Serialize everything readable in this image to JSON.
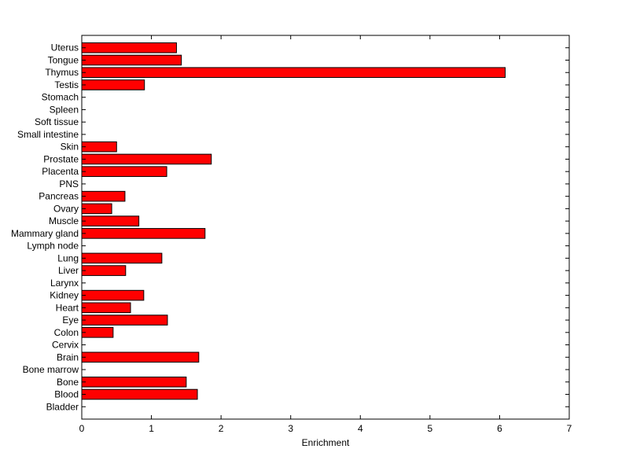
{
  "chart_data": {
    "type": "bar",
    "orientation": "horizontal",
    "title": "",
    "xlabel": "Enrichment",
    "ylabel": "",
    "xlim": [
      0,
      7
    ],
    "xticks": [
      "0",
      "1",
      "2",
      "3",
      "4",
      "5",
      "6",
      "7"
    ],
    "grid": false,
    "bar_color": "#ff0000",
    "bar_edge_color": "#000000",
    "categories": [
      "Bladder",
      "Blood",
      "Bone",
      "Bone marrow",
      "Brain",
      "Cervix",
      "Colon",
      "Eye",
      "Heart",
      "Kidney",
      "Larynx",
      "Liver",
      "Lung",
      "Lymph node",
      "Mammary gland",
      "Muscle",
      "Ovary",
      "Pancreas",
      "PNS",
      "Placenta",
      "Prostate",
      "Skin",
      "Small intestine",
      "Soft tissue",
      "Spleen",
      "Stomach",
      "Testis",
      "Thymus",
      "Tongue",
      "Uterus"
    ],
    "values": [
      0,
      1.66,
      1.5,
      0,
      1.68,
      0,
      0.45,
      1.23,
      0.7,
      0.89,
      0,
      0.63,
      1.15,
      0,
      1.77,
      0.82,
      0.43,
      0.62,
      0,
      1.22,
      1.86,
      0.5,
      0,
      0,
      0,
      0,
      0.9,
      6.08,
      1.43,
      1.36
    ]
  }
}
